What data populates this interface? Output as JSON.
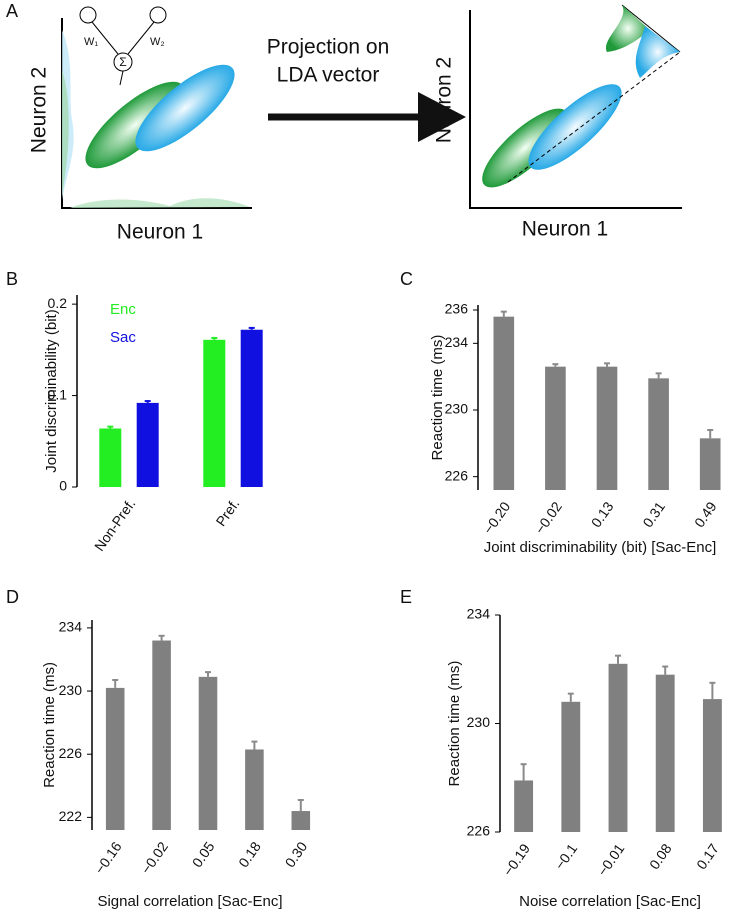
{
  "diagram": {
    "label": "A",
    "left": {
      "xlabel": "Neuron 1",
      "ylabel": "Neuron 2"
    },
    "network": {
      "w1": "W₁",
      "w2": "W₂",
      "sum": "Σ"
    },
    "arrow_text": [
      "Projection on",
      "LDA vector"
    ],
    "right": {
      "xlabel": "Neuron 1",
      "ylabel": "Neuron 2"
    }
  },
  "chart_data": [
    {
      "type": "bar",
      "label": "B",
      "ylabel": "Joint discriminability (bit)",
      "categories": [
        "Non-Pref.",
        "Pref."
      ],
      "series": [
        {
          "name": "Enc",
          "color": "#22ee22",
          "values": [
            0.064,
            0.161
          ],
          "errors": [
            0.002,
            0.002
          ]
        },
        {
          "name": "Sac",
          "color": "#1010e0",
          "values": [
            0.092,
            0.172
          ],
          "errors": [
            0.002,
            0.002
          ]
        }
      ],
      "ylim": [
        0,
        0.21
      ],
      "yticks": [
        0,
        0.1,
        0.2
      ]
    },
    {
      "type": "bar",
      "label": "C",
      "xlabel": "Joint discriminability (bit) [Sac-Enc]",
      "ylabel": "Reaction time (ms)",
      "categories": [
        "−0.20",
        "−0.02",
        "0.13",
        "0.31",
        "0.49"
      ],
      "color": "#808080",
      "values": [
        235.6,
        232.6,
        232.6,
        231.9,
        228.3
      ],
      "errors": [
        0.3,
        0.15,
        0.2,
        0.3,
        0.5
      ],
      "ylim": [
        225.2,
        236.3
      ],
      "yticks": [
        226,
        230,
        234,
        236
      ]
    },
    {
      "type": "bar",
      "label": "D",
      "xlabel": "Signal correlation [Sac-Enc]",
      "ylabel": "Reaction time (ms)",
      "categories": [
        "−0.16",
        "−0.02",
        "0.05",
        "0.18",
        "0.30"
      ],
      "color": "#808080",
      "values": [
        230.2,
        233.2,
        230.9,
        226.3,
        222.4
      ],
      "errors": [
        0.5,
        0.3,
        0.3,
        0.5,
        0.7
      ],
      "ylim": [
        221.2,
        234.5
      ],
      "yticks": [
        222,
        226,
        230,
        234
      ]
    },
    {
      "type": "bar",
      "label": "E",
      "xlabel": "Noise correlation [Sac-Enc]",
      "ylabel": "Reaction time (ms)",
      "categories": [
        "−0.19",
        "−0.1",
        "−0.01",
        "0.08",
        "0.17"
      ],
      "color": "#808080",
      "values": [
        227.9,
        230.8,
        232.2,
        231.8,
        230.9
      ],
      "errors": [
        0.6,
        0.3,
        0.3,
        0.3,
        0.6
      ],
      "ylim": [
        226,
        234
      ],
      "yticks": [
        226,
        230,
        234
      ]
    }
  ]
}
